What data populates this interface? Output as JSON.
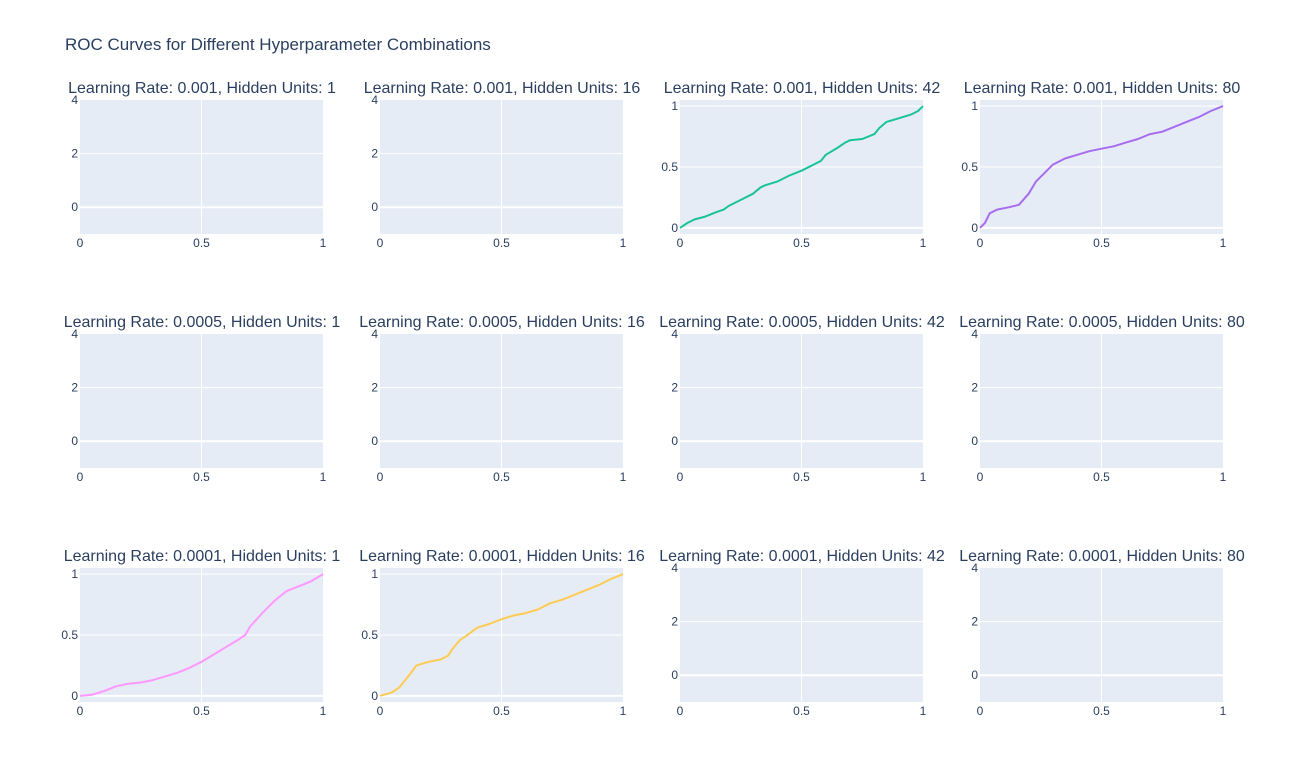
{
  "title": "ROC Curves for Different Hyperparameter Combinations",
  "colors": {
    "plot_bg": "#e5ecf6",
    "grid": "#ffffff",
    "text": "#2a3f5f",
    "series_green": "#19c39a",
    "series_purple": "#a86cf0",
    "series_pink": "#ff97ff",
    "series_yellow": "#fecb52"
  },
  "chart_data": [
    {
      "type": "line",
      "title": "Learning Rate: 0.001, Hidden Units: 1",
      "xlim": [
        0,
        1
      ],
      "ylim": [
        -1,
        4
      ],
      "xticks": [
        {
          "v": 0,
          "label": "0"
        },
        {
          "v": 0.5,
          "label": "0.5"
        },
        {
          "v": 1,
          "label": "1"
        }
      ],
      "yticks": [
        {
          "v": 0,
          "label": "0"
        },
        {
          "v": 2,
          "label": "2"
        },
        {
          "v": 4,
          "label": "4"
        }
      ],
      "series": []
    },
    {
      "type": "line",
      "title": "Learning Rate: 0.001, Hidden Units: 16",
      "xlim": [
        0,
        1
      ],
      "ylim": [
        -1,
        4
      ],
      "xticks": [
        {
          "v": 0,
          "label": "0"
        },
        {
          "v": 0.5,
          "label": "0.5"
        },
        {
          "v": 1,
          "label": "1"
        }
      ],
      "yticks": [
        {
          "v": 0,
          "label": "0"
        },
        {
          "v": 2,
          "label": "2"
        },
        {
          "v": 4,
          "label": "4"
        }
      ],
      "series": []
    },
    {
      "type": "line",
      "title": "Learning Rate: 0.001, Hidden Units: 42",
      "xlim": [
        0,
        1
      ],
      "ylim": [
        -0.05,
        1.05
      ],
      "xticks": [
        {
          "v": 0,
          "label": "0"
        },
        {
          "v": 0.5,
          "label": "0.5"
        },
        {
          "v": 1,
          "label": "1"
        }
      ],
      "yticks": [
        {
          "v": 0,
          "label": "0"
        },
        {
          "v": 0.5,
          "label": "0.5"
        },
        {
          "v": 1,
          "label": "1"
        }
      ],
      "series": [
        {
          "color": "#19c39a",
          "x": [
            0,
            0.03,
            0.06,
            0.1,
            0.15,
            0.18,
            0.2,
            0.25,
            0.3,
            0.33,
            0.35,
            0.4,
            0.45,
            0.5,
            0.55,
            0.58,
            0.6,
            0.65,
            0.68,
            0.7,
            0.75,
            0.8,
            0.82,
            0.85,
            0.9,
            0.95,
            0.98,
            1
          ],
          "y": [
            0,
            0.04,
            0.07,
            0.09,
            0.13,
            0.15,
            0.18,
            0.23,
            0.28,
            0.33,
            0.35,
            0.38,
            0.43,
            0.47,
            0.52,
            0.55,
            0.6,
            0.66,
            0.7,
            0.72,
            0.73,
            0.77,
            0.82,
            0.87,
            0.9,
            0.93,
            0.96,
            1
          ]
        }
      ]
    },
    {
      "type": "line",
      "title": "Learning Rate: 0.001, Hidden Units: 80",
      "xlim": [
        0,
        1
      ],
      "ylim": [
        -0.05,
        1.05
      ],
      "xticks": [
        {
          "v": 0,
          "label": "0"
        },
        {
          "v": 0.5,
          "label": "0.5"
        },
        {
          "v": 1,
          "label": "1"
        }
      ],
      "yticks": [
        {
          "v": 0,
          "label": "0"
        },
        {
          "v": 0.5,
          "label": "0.5"
        },
        {
          "v": 1,
          "label": "1"
        }
      ],
      "series": [
        {
          "color": "#a86cf0",
          "x": [
            0,
            0.02,
            0.04,
            0.07,
            0.12,
            0.16,
            0.2,
            0.23,
            0.27,
            0.3,
            0.35,
            0.4,
            0.45,
            0.5,
            0.55,
            0.6,
            0.65,
            0.7,
            0.75,
            0.8,
            0.85,
            0.9,
            0.95,
            1
          ],
          "y": [
            0,
            0.04,
            0.12,
            0.15,
            0.17,
            0.19,
            0.28,
            0.38,
            0.46,
            0.52,
            0.57,
            0.6,
            0.63,
            0.65,
            0.67,
            0.7,
            0.73,
            0.77,
            0.79,
            0.83,
            0.87,
            0.91,
            0.96,
            1
          ]
        }
      ]
    },
    {
      "type": "line",
      "title": "Learning Rate: 0.0005, Hidden Units: 1",
      "xlim": [
        0,
        1
      ],
      "ylim": [
        -1,
        4
      ],
      "xticks": [
        {
          "v": 0,
          "label": "0"
        },
        {
          "v": 0.5,
          "label": "0.5"
        },
        {
          "v": 1,
          "label": "1"
        }
      ],
      "yticks": [
        {
          "v": 0,
          "label": "0"
        },
        {
          "v": 2,
          "label": "2"
        },
        {
          "v": 4,
          "label": "4"
        }
      ],
      "series": []
    },
    {
      "type": "line",
      "title": "Learning Rate: 0.0005, Hidden Units: 16",
      "xlim": [
        0,
        1
      ],
      "ylim": [
        -1,
        4
      ],
      "xticks": [
        {
          "v": 0,
          "label": "0"
        },
        {
          "v": 0.5,
          "label": "0.5"
        },
        {
          "v": 1,
          "label": "1"
        }
      ],
      "yticks": [
        {
          "v": 0,
          "label": "0"
        },
        {
          "v": 2,
          "label": "2"
        },
        {
          "v": 4,
          "label": "4"
        }
      ],
      "series": []
    },
    {
      "type": "line",
      "title": "Learning Rate: 0.0005, Hidden Units: 42",
      "xlim": [
        0,
        1
      ],
      "ylim": [
        -1,
        4
      ],
      "xticks": [
        {
          "v": 0,
          "label": "0"
        },
        {
          "v": 0.5,
          "label": "0.5"
        },
        {
          "v": 1,
          "label": "1"
        }
      ],
      "yticks": [
        {
          "v": 0,
          "label": "0"
        },
        {
          "v": 2,
          "label": "2"
        },
        {
          "v": 4,
          "label": "4"
        }
      ],
      "series": []
    },
    {
      "type": "line",
      "title": "Learning Rate: 0.0005, Hidden Units: 80",
      "xlim": [
        0,
        1
      ],
      "ylim": [
        -1,
        4
      ],
      "xticks": [
        {
          "v": 0,
          "label": "0"
        },
        {
          "v": 0.5,
          "label": "0.5"
        },
        {
          "v": 1,
          "label": "1"
        }
      ],
      "yticks": [
        {
          "v": 0,
          "label": "0"
        },
        {
          "v": 2,
          "label": "2"
        },
        {
          "v": 4,
          "label": "4"
        }
      ],
      "series": []
    },
    {
      "type": "line",
      "title": "Learning Rate: 0.0001, Hidden Units: 1",
      "xlim": [
        0,
        1
      ],
      "ylim": [
        -0.05,
        1.05
      ],
      "xticks": [
        {
          "v": 0,
          "label": "0"
        },
        {
          "v": 0.5,
          "label": "0.5"
        },
        {
          "v": 1,
          "label": "1"
        }
      ],
      "yticks": [
        {
          "v": 0,
          "label": "0"
        },
        {
          "v": 0.5,
          "label": "0.5"
        },
        {
          "v": 1,
          "label": "1"
        }
      ],
      "series": [
        {
          "color": "#ff97ff",
          "x": [
            0,
            0.05,
            0.1,
            0.15,
            0.2,
            0.25,
            0.3,
            0.35,
            0.4,
            0.45,
            0.5,
            0.55,
            0.6,
            0.65,
            0.68,
            0.7,
            0.75,
            0.8,
            0.85,
            0.9,
            0.95,
            1
          ],
          "y": [
            0,
            0.01,
            0.04,
            0.08,
            0.1,
            0.11,
            0.13,
            0.16,
            0.19,
            0.23,
            0.28,
            0.34,
            0.4,
            0.46,
            0.5,
            0.57,
            0.68,
            0.78,
            0.86,
            0.9,
            0.94,
            1
          ]
        }
      ]
    },
    {
      "type": "line",
      "title": "Learning Rate: 0.0001, Hidden Units: 16",
      "xlim": [
        0,
        1
      ],
      "ylim": [
        -0.05,
        1.05
      ],
      "xticks": [
        {
          "v": 0,
          "label": "0"
        },
        {
          "v": 0.5,
          "label": "0.5"
        },
        {
          "v": 1,
          "label": "1"
        }
      ],
      "yticks": [
        {
          "v": 0,
          "label": "0"
        },
        {
          "v": 0.5,
          "label": "0.5"
        },
        {
          "v": 1,
          "label": "1"
        }
      ],
      "series": [
        {
          "color": "#fecb52",
          "x": [
            0,
            0.05,
            0.08,
            0.1,
            0.12,
            0.15,
            0.2,
            0.25,
            0.28,
            0.3,
            0.33,
            0.36,
            0.4,
            0.45,
            0.5,
            0.55,
            0.6,
            0.65,
            0.7,
            0.75,
            0.8,
            0.85,
            0.9,
            0.95,
            1
          ],
          "y": [
            0,
            0.03,
            0.07,
            0.12,
            0.17,
            0.25,
            0.28,
            0.3,
            0.33,
            0.39,
            0.46,
            0.5,
            0.56,
            0.59,
            0.63,
            0.66,
            0.68,
            0.71,
            0.76,
            0.79,
            0.83,
            0.87,
            0.91,
            0.96,
            1
          ]
        }
      ]
    },
    {
      "type": "line",
      "title": "Learning Rate: 0.0001, Hidden Units: 42",
      "xlim": [
        0,
        1
      ],
      "ylim": [
        -1,
        4
      ],
      "xticks": [
        {
          "v": 0,
          "label": "0"
        },
        {
          "v": 0.5,
          "label": "0.5"
        },
        {
          "v": 1,
          "label": "1"
        }
      ],
      "yticks": [
        {
          "v": 0,
          "label": "0"
        },
        {
          "v": 2,
          "label": "2"
        },
        {
          "v": 4,
          "label": "4"
        }
      ],
      "series": []
    },
    {
      "type": "line",
      "title": "Learning Rate: 0.0001, Hidden Units: 80",
      "xlim": [
        0,
        1
      ],
      "ylim": [
        -1,
        4
      ],
      "xticks": [
        {
          "v": 0,
          "label": "0"
        },
        {
          "v": 0.5,
          "label": "0.5"
        },
        {
          "v": 1,
          "label": "1"
        }
      ],
      "yticks": [
        {
          "v": 0,
          "label": "0"
        },
        {
          "v": 2,
          "label": "2"
        },
        {
          "v": 4,
          "label": "4"
        }
      ],
      "series": []
    }
  ]
}
